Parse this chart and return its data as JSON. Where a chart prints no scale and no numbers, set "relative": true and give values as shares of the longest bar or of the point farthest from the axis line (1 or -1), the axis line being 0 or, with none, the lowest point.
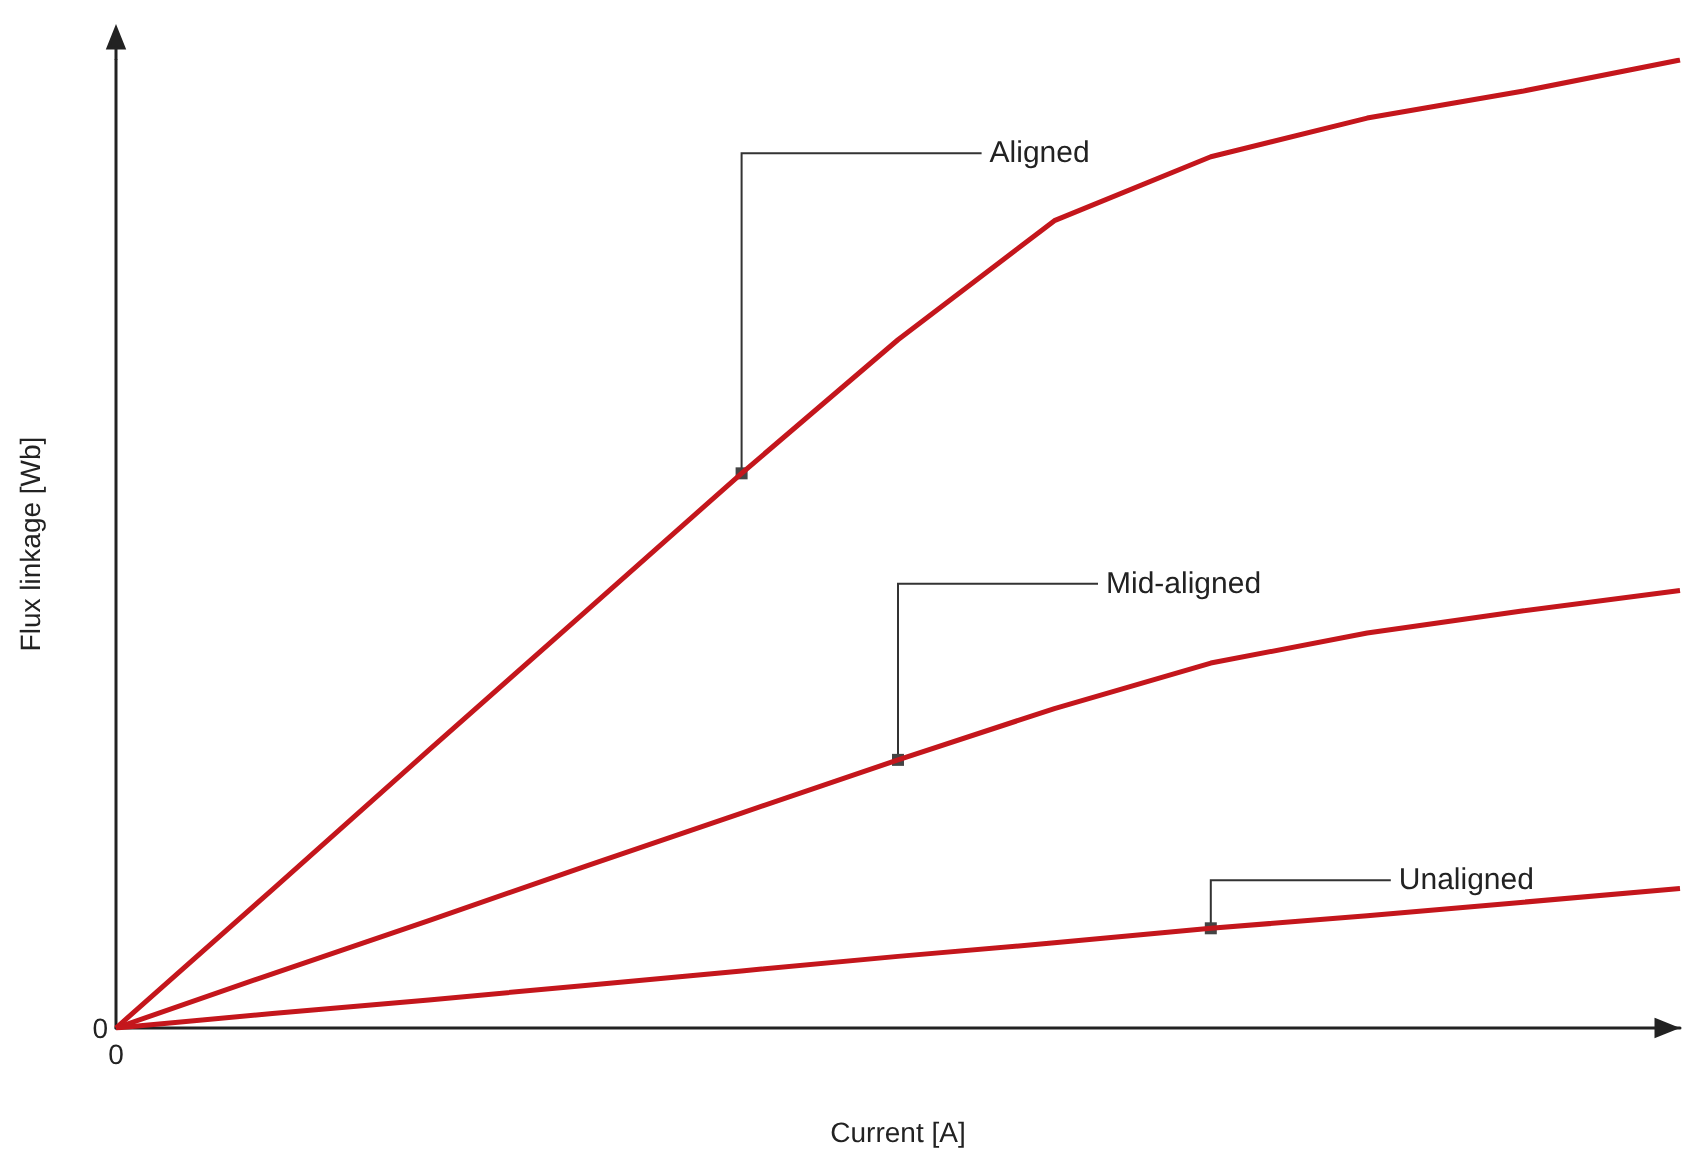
{
  "chart_data": {
    "type": "line",
    "relative": true,
    "xlabel": "Current [A]",
    "ylabel": "Flux linkage [Wb]",
    "annotations": [
      "0",
      "0"
    ],
    "categories": [
      null,
      null,
      null,
      null,
      null,
      null,
      null,
      null,
      null,
      null,
      null
    ],
    "series": [
      {
        "name": "Aligned",
        "color": "#c4161c",
        "values": [
          0,
          0.143,
          0.287,
          0.43,
          0.573,
          0.711,
          0.834,
          0.9,
          0.94,
          0.968,
          1
        ]
      },
      {
        "name": "Mid-aligned",
        "color": "#c4161c",
        "values": [
          0,
          0.056,
          0.111,
          0.167,
          0.222,
          0.277,
          0.33,
          0.377,
          0.408,
          0.431,
          0.452
        ]
      },
      {
        "name": "Unaligned",
        "color": "#c4161c",
        "values": [
          0,
          0.015,
          0.029,
          0.044,
          0.059,
          0.074,
          0.088,
          0.103,
          0.116,
          0.13,
          0.144
        ]
      }
    ]
  }
}
